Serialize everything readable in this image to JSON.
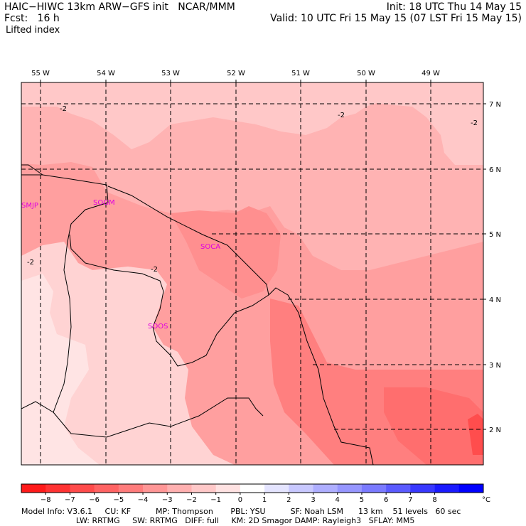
{
  "header": {
    "line1_left": "HAIC−HIWC 13km ARW−GFS init   NCAR/MMM",
    "line2_left": "Fcst:   16 h",
    "line3_left": "Lifted index",
    "line1_right": "Init: 18 UTC Thu 14 May 15",
    "line2_right": "Valid: 10 UTC Fri 15 May 15 (07 LST Fri 15 May 15)"
  },
  "map": {
    "longitude_labels": [
      "55 W",
      "54 W",
      "53 W",
      "52 W",
      "51 W",
      "50 W",
      "49 W"
    ],
    "latitude_labels": [
      "7 N",
      "6 N",
      "5 N",
      "4 N",
      "3 N",
      "2 N"
    ],
    "stations": [
      "SMJP",
      "SOGM",
      "SOCA",
      "SOOS"
    ],
    "contour_labels": [
      "-2",
      "-2",
      "-2",
      "-2",
      "-2"
    ]
  },
  "colorbar": {
    "tick_labels": [
      "−8",
      "−7",
      "−6",
      "−5",
      "−4",
      "−3",
      "−2",
      "−1",
      "0",
      "1",
      "2",
      "3",
      "4",
      "5",
      "6",
      "7",
      "8"
    ],
    "unit": "°C",
    "colors": [
      "#ff1a1a",
      "#ff3333",
      "#ff4b4b",
      "#ff6363",
      "#ff7c7c",
      "#ff9696",
      "#ffb0b0",
      "#ffc8c8",
      "#ffe2e2",
      "#ffffff",
      "#e4e4ff",
      "#c8c8ff",
      "#aeaeff",
      "#9696ff",
      "#7a7aff",
      "#5a5aff",
      "#3838ff",
      "#1a1aff",
      "#0000ff"
    ]
  },
  "footer": {
    "line1": "Model Info: V3.6.1     CU: KF          MP: Thompson       PBL: YSU          SF: Noah LSM      13 km    51 levels   60 sec",
    "line2": "                      LW: RRTMG     SW: RRTMG   DIFF: full     KM: 2D Smagor DAMP: Rayleigh3   SFLAY: MM5"
  }
}
